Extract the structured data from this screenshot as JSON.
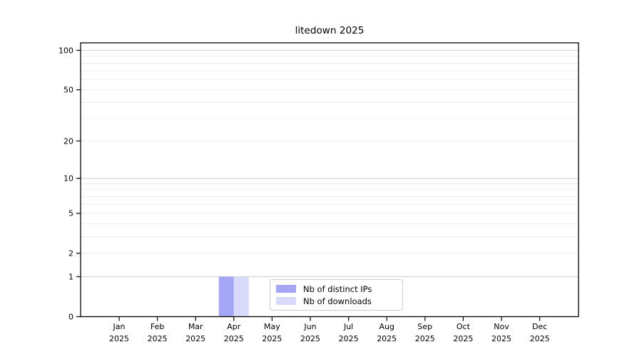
{
  "chart_data": {
    "type": "bar",
    "title": "litedown 2025",
    "categories": [
      "Jan 2025",
      "Feb 2025",
      "Mar 2025",
      "Apr 2025",
      "May 2025",
      "Jun 2025",
      "Jul 2025",
      "Aug 2025",
      "Sep 2025",
      "Oct 2025",
      "Nov 2025",
      "Dec 2025"
    ],
    "series": [
      {
        "name": "Nb of distinct IPs",
        "color": "#a6a6f6",
        "values": [
          0,
          0,
          0,
          1,
          0,
          0,
          0,
          0,
          0,
          0,
          0,
          0
        ]
      },
      {
        "name": "Nb of downloads",
        "color": "#d9d9fb",
        "values": [
          0,
          0,
          0,
          1,
          0,
          0,
          0,
          0,
          0,
          0,
          0,
          0
        ]
      }
    ],
    "xlabel": "",
    "ylabel": "",
    "yscale": "log1p",
    "ylim": [
      0,
      114
    ],
    "yticks": [
      0,
      1,
      2,
      5,
      10,
      20,
      50,
      100
    ],
    "grid_major_values": [
      1,
      10,
      100
    ],
    "grid_minor_values": [
      2,
      3,
      4,
      5,
      6,
      7,
      8,
      9,
      20,
      30,
      40,
      50,
      60,
      70,
      80,
      90
    ],
    "grid": true,
    "legend_position": "bottom-center"
  },
  "colors": {
    "axis": "#000000",
    "grid_major": "#d2d2d2",
    "grid_minor": "#ececec",
    "legend_border": "#cccccc",
    "background": "#ffffff",
    "text": "#000000"
  }
}
